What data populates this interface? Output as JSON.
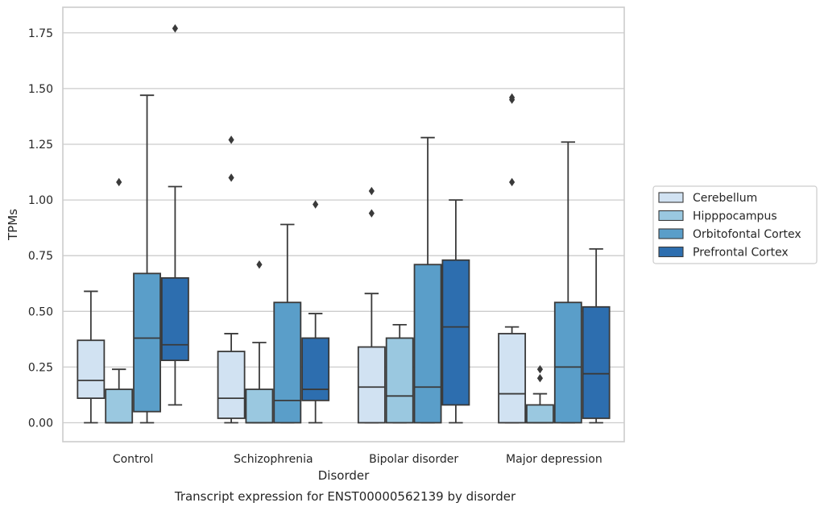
{
  "chart_data": {
    "type": "boxplot",
    "title": "",
    "caption": "Transcript expression for ENST00000562139 by disorder",
    "xlabel": "Disorder",
    "ylabel": "TPMs",
    "ylim": [
      -0.085,
      1.865
    ],
    "yticks": [
      0.0,
      0.25,
      0.5,
      0.75,
      1.0,
      1.25,
      1.5,
      1.75
    ],
    "ytick_labels": [
      "0.00",
      "0.25",
      "0.50",
      "0.75",
      "1.00",
      "1.25",
      "1.50",
      "1.75"
    ],
    "grid": "horizontal",
    "legend_position": "right",
    "categories": [
      "Control",
      "Schizophrenia",
      "Bipolar disorder",
      "Major depression"
    ],
    "series": [
      {
        "name": "Cerebellum",
        "color": "#d1e2f2",
        "boxes": [
          {
            "whislo": 0.0,
            "q1": 0.11,
            "med": 0.19,
            "q3": 0.37,
            "whishi": 0.59,
            "fliers": []
          },
          {
            "whislo": 0.0,
            "q1": 0.02,
            "med": 0.11,
            "q3": 0.32,
            "whishi": 0.4,
            "fliers": [
              1.1,
              1.27
            ]
          },
          {
            "whislo": 0.0,
            "q1": 0.0,
            "med": 0.16,
            "q3": 0.34,
            "whishi": 0.58,
            "fliers": [
              0.94,
              1.04
            ]
          },
          {
            "whislo": 0.0,
            "q1": 0.0,
            "med": 0.13,
            "q3": 0.4,
            "whishi": 0.43,
            "fliers": [
              1.08,
              1.45,
              1.46
            ]
          }
        ]
      },
      {
        "name": "Hipppocampus",
        "color": "#9ac8e0",
        "boxes": [
          {
            "whislo": 0.0,
            "q1": 0.0,
            "med": 0.0,
            "q3": 0.15,
            "whishi": 0.24,
            "fliers": [
              1.08
            ]
          },
          {
            "whislo": 0.0,
            "q1": 0.0,
            "med": 0.0,
            "q3": 0.15,
            "whishi": 0.36,
            "fliers": [
              0.71
            ]
          },
          {
            "whislo": 0.0,
            "q1": 0.0,
            "med": 0.12,
            "q3": 0.38,
            "whishi": 0.44,
            "fliers": []
          },
          {
            "whislo": 0.0,
            "q1": 0.0,
            "med": 0.0,
            "q3": 0.08,
            "whishi": 0.13,
            "fliers": [
              0.2,
              0.24
            ]
          }
        ]
      },
      {
        "name": "Orbitofontal Cortex",
        "color": "#5a9ec9",
        "boxes": [
          {
            "whislo": 0.0,
            "q1": 0.05,
            "med": 0.38,
            "q3": 0.67,
            "whishi": 1.47,
            "fliers": []
          },
          {
            "whislo": 0.0,
            "q1": 0.0,
            "med": 0.1,
            "q3": 0.54,
            "whishi": 0.89,
            "fliers": []
          },
          {
            "whislo": 0.0,
            "q1": 0.0,
            "med": 0.16,
            "q3": 0.71,
            "whishi": 1.28,
            "fliers": []
          },
          {
            "whislo": 0.0,
            "q1": 0.0,
            "med": 0.25,
            "q3": 0.54,
            "whishi": 1.26,
            "fliers": []
          }
        ]
      },
      {
        "name": "Prefrontal Cortex",
        "color": "#2d6eaf",
        "boxes": [
          {
            "whislo": 0.08,
            "q1": 0.28,
            "med": 0.35,
            "q3": 0.65,
            "whishi": 1.06,
            "fliers": [
              1.77
            ]
          },
          {
            "whislo": 0.0,
            "q1": 0.1,
            "med": 0.15,
            "q3": 0.38,
            "whishi": 0.49,
            "fliers": [
              0.98
            ]
          },
          {
            "whislo": 0.0,
            "q1": 0.08,
            "med": 0.43,
            "q3": 0.73,
            "whishi": 1.0,
            "fliers": []
          },
          {
            "whislo": 0.0,
            "q1": 0.02,
            "med": 0.22,
            "q3": 0.52,
            "whishi": 0.78,
            "fliers": []
          }
        ]
      }
    ]
  },
  "style": {
    "grid_color": "#cccccc",
    "frame_color": "#cccccc",
    "box_edge_color": "#3a3a3a"
  }
}
